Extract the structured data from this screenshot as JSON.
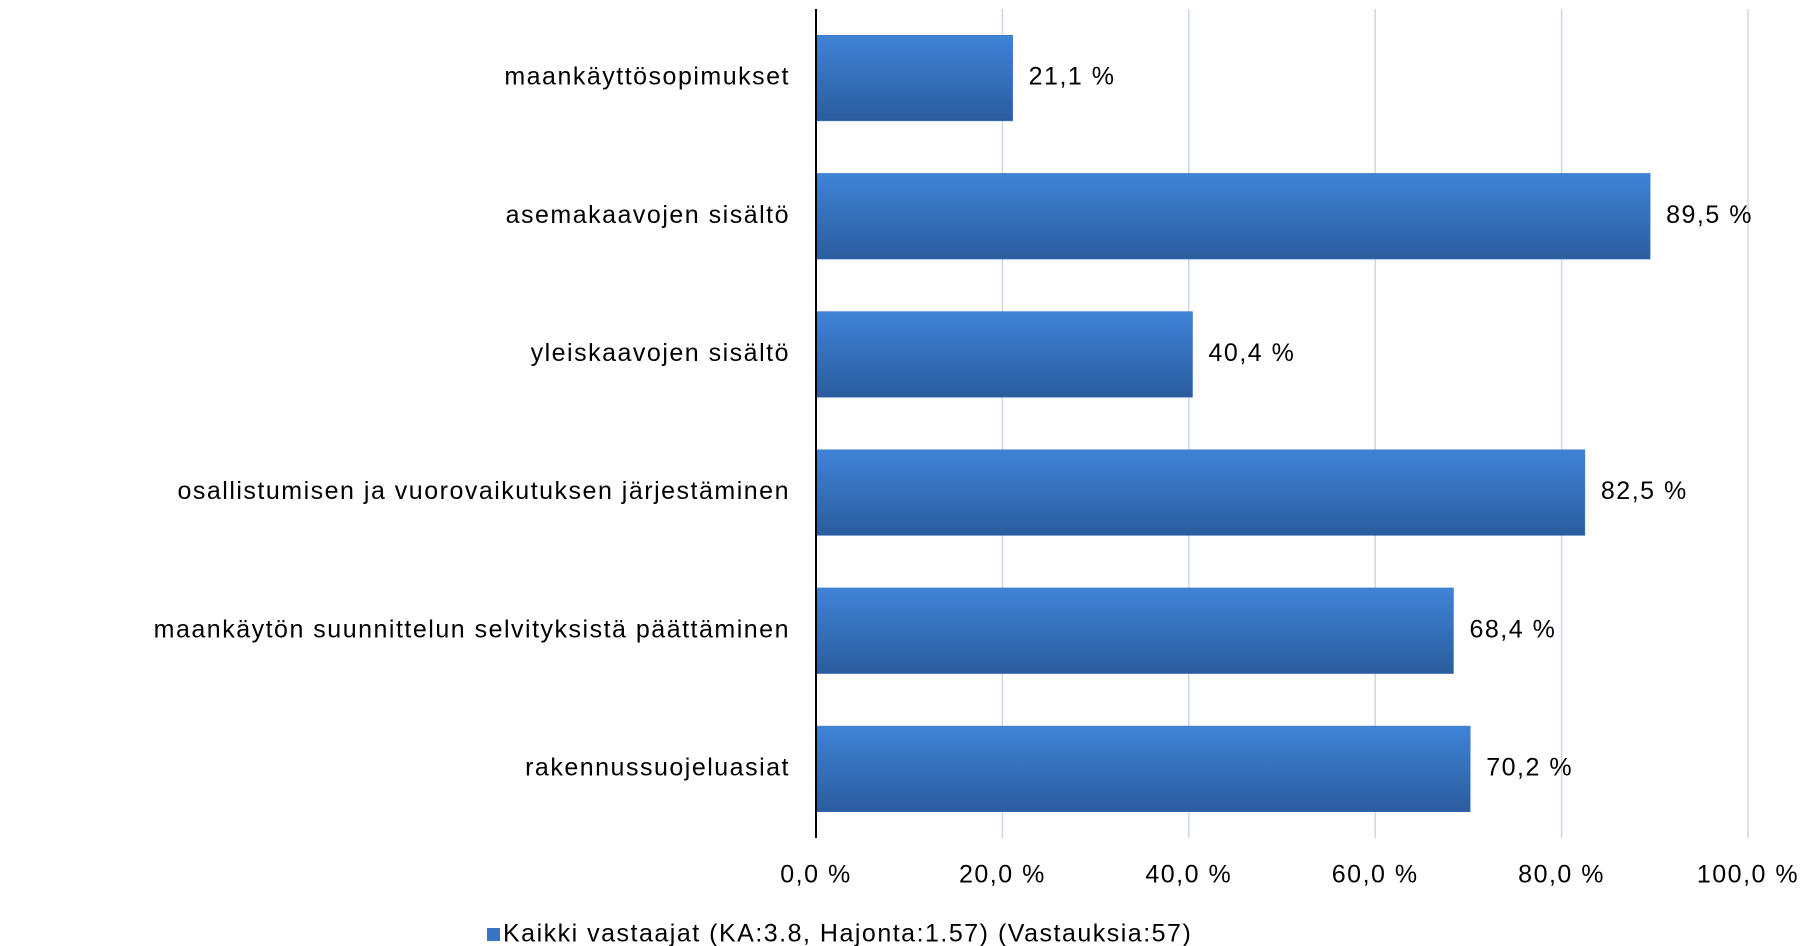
{
  "chart_data": {
    "type": "bar",
    "orientation": "horizontal",
    "categories": [
      "maankäyttösopimukset",
      "asemakaavojen sisältö",
      "yleiskaavojen sisältö",
      "osallistumisen ja vuorovaikutuksen järjestäminen",
      "maankäytön suunnittelun selvityksistä päättäminen",
      "rakennussuojeluasiat"
    ],
    "series": [
      {
        "name": "Kaikki vastaajat (KA:3.8, Hajonta:1.57) (Vastauksia:57)",
        "color": "#3a75c4",
        "values": [
          21.1,
          89.5,
          40.4,
          82.5,
          68.4,
          70.2
        ],
        "value_labels": [
          "21,1 %",
          "89,5 %",
          "40,4 %",
          "82,5 %",
          "68,4 %",
          "70,2 %"
        ]
      }
    ],
    "xlim": [
      0,
      100
    ],
    "xticks": [
      {
        "value": 0,
        "label": "0,0 %"
      },
      {
        "value": 20,
        "label": "20,0 %"
      },
      {
        "value": 40,
        "label": "40,0 %"
      },
      {
        "value": 60,
        "label": "60,0 %"
      },
      {
        "value": 80,
        "label": "80,0 %"
      },
      {
        "value": 100,
        "label": "100,0 %"
      }
    ],
    "grid": true,
    "legend": "bottom"
  }
}
